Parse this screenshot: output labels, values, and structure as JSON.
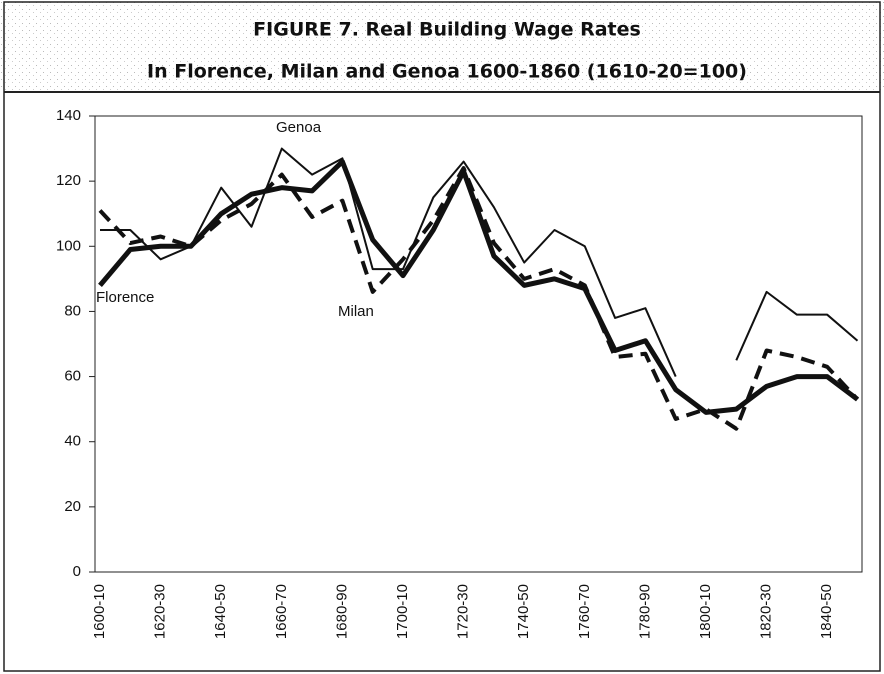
{
  "chart_data": {
    "type": "line",
    "title": "FIGURE 7. Real Building Wage Rates",
    "subtitle": "In Florence, Milan and Genoa 1600-1860 (1610-20=100)",
    "categories": [
      "1600-10",
      null,
      "1620-30",
      null,
      "1640-50",
      null,
      "1660-70",
      null,
      "1680-90",
      null,
      "1700-10",
      null,
      "1720-30",
      null,
      "1740-50",
      null,
      "1760-70",
      null,
      "1780-90",
      null,
      "1800-10",
      null,
      "1820-30",
      null,
      "1840-50",
      null
    ],
    "series": [
      {
        "name": "Genoa",
        "color": "#111111",
        "style": "thin",
        "values": [
          105,
          105,
          96,
          100,
          118,
          106,
          130,
          122,
          127,
          93,
          93,
          115,
          126,
          112,
          95,
          105,
          100,
          78,
          81,
          60,
          null,
          65,
          86,
          79,
          79,
          71
        ]
      },
      {
        "name": "Florence",
        "color": "#111111",
        "style": "thick",
        "values": [
          88,
          99,
          100,
          100,
          110,
          116,
          118,
          117,
          126,
          102,
          91,
          105,
          123,
          97,
          88,
          90,
          87,
          68,
          71,
          56,
          49,
          50,
          57,
          60,
          60,
          53
        ]
      },
      {
        "name": "Milan",
        "color": "#111111",
        "style": "dashed",
        "values": [
          111,
          101,
          103,
          100,
          108,
          113,
          122,
          109,
          114,
          86,
          96,
          108,
          124,
          101,
          90,
          93,
          88,
          66,
          67,
          47,
          50,
          44,
          68,
          66,
          63,
          53
        ]
      }
    ],
    "ylim": [
      0,
      140
    ],
    "yticks": [
      0,
      20,
      40,
      60,
      80,
      100,
      120,
      140
    ],
    "grid": false
  }
}
